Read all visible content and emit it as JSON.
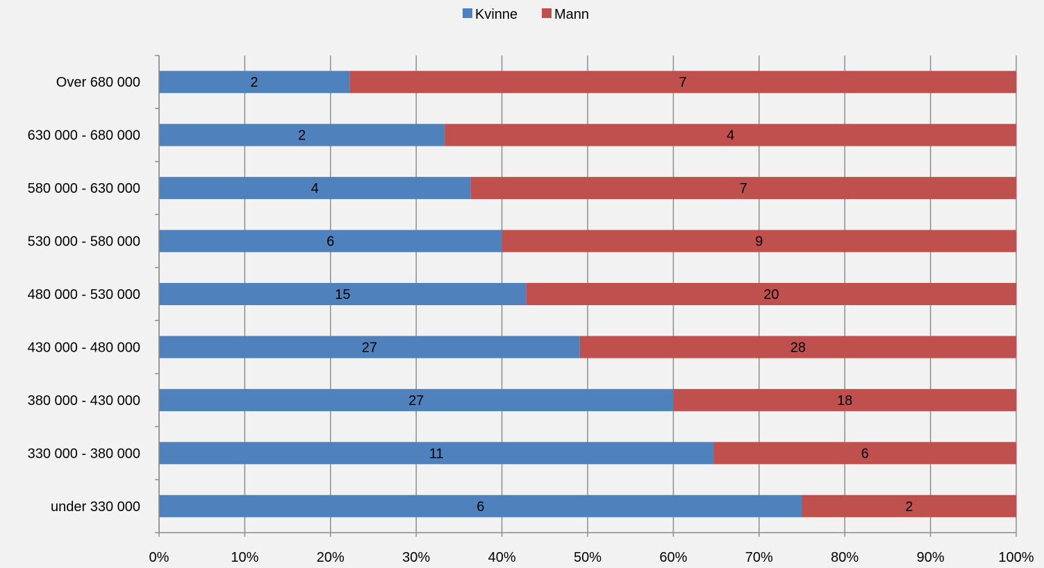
{
  "chart_data": {
    "type": "bar",
    "orientation": "horizontal",
    "stacking": "percent",
    "categories": [
      "Over 680 000",
      "630 000 - 680 000",
      "580 000 - 630 000",
      "530 000 - 580 000",
      "480 000 - 530 000",
      "430 000 - 480 000",
      "380 000 - 430 000",
      "330 000 - 380 000",
      "under 330 000"
    ],
    "series": [
      {
        "name": "Kvinne",
        "color": "#4f81bd",
        "values": [
          2,
          2,
          4,
          6,
          15,
          27,
          27,
          11,
          6
        ]
      },
      {
        "name": "Mann",
        "color": "#c0504d",
        "values": [
          7,
          4,
          7,
          9,
          20,
          28,
          18,
          6,
          2
        ]
      }
    ],
    "x_ticks": [
      "0%",
      "10%",
      "20%",
      "30%",
      "40%",
      "50%",
      "60%",
      "70%",
      "80%",
      "90%",
      "100%"
    ],
    "xlim": [
      0,
      100
    ],
    "title": "",
    "xlabel": "",
    "ylabel": "",
    "grid": "vertical",
    "legend": "top-center",
    "data_labels": true
  }
}
